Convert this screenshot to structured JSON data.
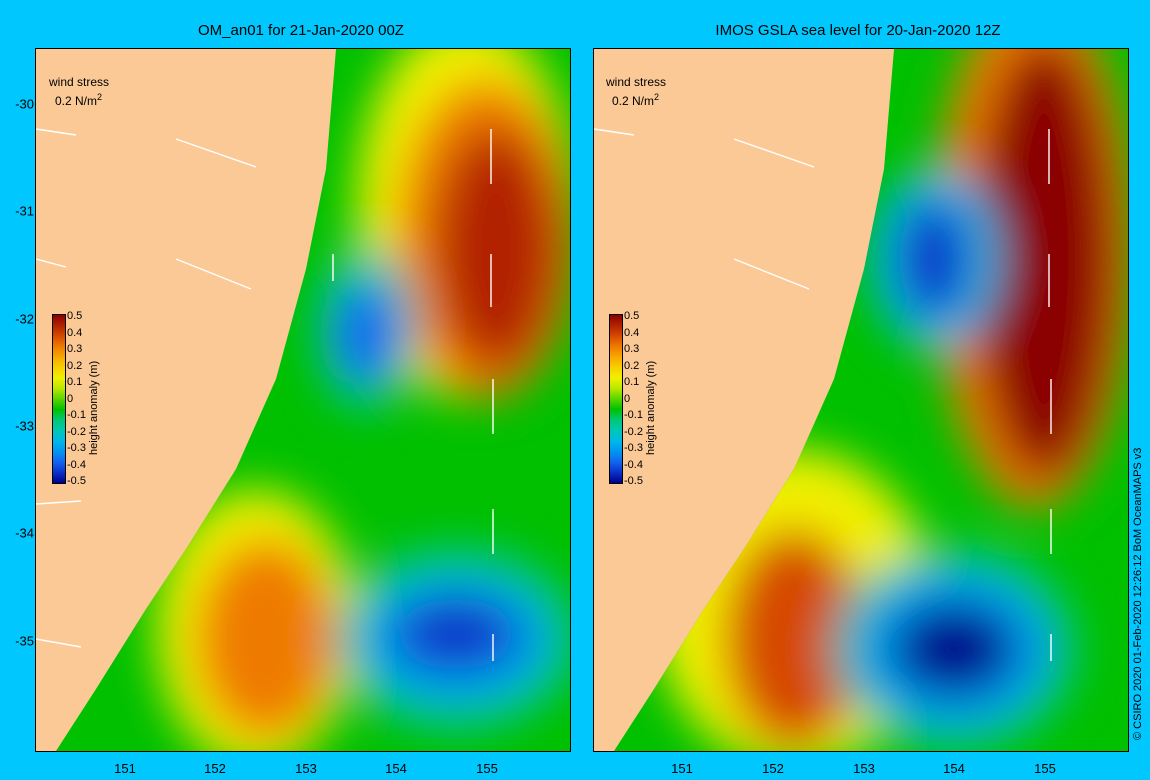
{
  "panels": [
    {
      "title": "OM_an01 for 21-Jan-2020 00Z",
      "wind_legend_label": "wind stress",
      "wind_legend_value": "0.2 N/m",
      "wind_legend_exp": "2",
      "colorbar_title": "height anomaly (m)",
      "eddies": [
        {
          "type": "cyclonic",
          "lon": 153.6,
          "lat": -32.1,
          "anomaly": -0.3
        },
        {
          "type": "cyclonic",
          "lon": 154.75,
          "lat": -34.8,
          "anomaly": -0.45
        },
        {
          "type": "anticyclonic",
          "lon": 155.0,
          "lat": -31.2,
          "anomaly": 0.5
        },
        {
          "type": "anticyclonic",
          "lon": 152.5,
          "lat": -34.9,
          "anomaly": 0.35
        }
      ]
    },
    {
      "title": "IMOS GSLA sea level  for 20-Jan-2020 12Z",
      "wind_legend_label": "wind stress",
      "wind_legend_value": "0.2 N/m",
      "wind_legend_exp": "2",
      "colorbar_title": "height anomaly (m)",
      "eddies": [
        {
          "type": "cyclonic",
          "lon": 153.7,
          "lat": -31.4,
          "anomaly": -0.45
        },
        {
          "type": "cyclonic",
          "lon": 154.2,
          "lat": -35.0,
          "anomaly": -0.5
        },
        {
          "type": "anticyclonic",
          "lon": 155.4,
          "lat": -31.5,
          "anomaly": 0.5
        },
        {
          "type": "anticyclonic",
          "lon": 152.3,
          "lat": -34.9,
          "anomaly": 0.4
        }
      ]
    }
  ],
  "axes": {
    "lon_ticks": [
      "151",
      "152",
      "153",
      "154",
      "155"
    ],
    "lat_ticks": [
      "-30",
      "-31",
      "-32",
      "-33",
      "-34",
      "-35"
    ],
    "lon_range": [
      150.1,
      155.95
    ],
    "lat_range": [
      -36.0,
      -29.5
    ]
  },
  "colorbar": {
    "ticks": [
      "0.5",
      "0.4",
      "0.3",
      "0.2",
      "0.1",
      "0",
      "-0.1",
      "-0.2",
      "-0.3",
      "-0.4",
      "-0.5"
    ],
    "colors": [
      "#8b0000",
      "#b22200",
      "#d64a00",
      "#ef7a00",
      "#f7a800",
      "#f7d000",
      "#f2f000",
      "#b8e800",
      "#5cd400",
      "#00c000",
      "#00c878",
      "#00c8b4",
      "#00b8e8",
      "#0096f0",
      "#1464f0",
      "#0a32c8",
      "#00008b"
    ]
  },
  "credit": "© CSIRO 2020  01-Feb-2020 12:26:12 BoM OceanMAPS v3"
}
